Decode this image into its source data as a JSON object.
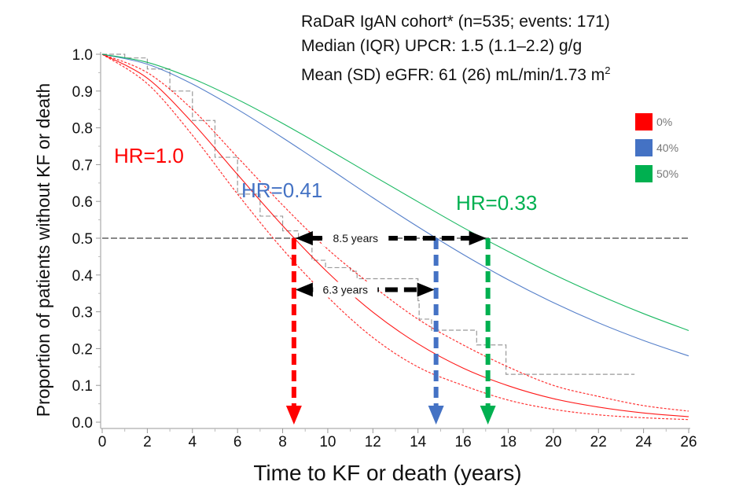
{
  "header": {
    "line1": "RaDaR IgAN cohort* (n=535; events: 171)",
    "line2": "Median (IQR) UPCR: 1.5 (1.1–2.2) g/g",
    "line3_prefix": "Mean (SD) eGFR: 61 (26) mL/min/1.73 m",
    "line3_sup": "2"
  },
  "legend": [
    {
      "label": "0%",
      "color": "#ff0000"
    },
    {
      "label": "40%",
      "color": "#4472c4"
    },
    {
      "label": "50%",
      "color": "#00b050"
    }
  ],
  "hr_labels": [
    {
      "text": "HR=1.0",
      "color": "#ff0000"
    },
    {
      "text": "HR=0.41",
      "color": "#4472c4"
    },
    {
      "text": "HR=0.33",
      "color": "#00b050"
    }
  ],
  "chart_data": {
    "type": "line",
    "xlabel": "Time to KF or death (years)",
    "ylabel": "Proportion of patients  without KF or death",
    "xlim": [
      0,
      26
    ],
    "ylim": [
      0,
      1
    ],
    "xticks": [
      "0",
      "2",
      "4",
      "6",
      "8",
      "10",
      "12",
      "14",
      "16",
      "18",
      "20",
      "22",
      "24",
      "26"
    ],
    "yticks": [
      "0.0",
      "0.1",
      "0.2",
      "0.3",
      "0.4",
      "0.5",
      "0.6",
      "0.7",
      "0.8",
      "0.9",
      "1.0"
    ],
    "x": [
      0,
      2,
      4,
      6,
      8,
      10,
      12,
      14,
      16,
      18,
      20,
      22,
      24,
      26
    ],
    "series": [
      {
        "name": "0%",
        "color": "#ff0000",
        "values": [
          1.0,
          0.935,
          0.814,
          0.673,
          0.534,
          0.407,
          0.299,
          0.213,
          0.147,
          0.099,
          0.064,
          0.041,
          0.025,
          0.015
        ]
      },
      {
        "name": "0% upper CI",
        "color": "#ff0000",
        "style": "dotted",
        "values": [
          1.0,
          0.95,
          0.85,
          0.72,
          0.59,
          0.47,
          0.37,
          0.28,
          0.21,
          0.15,
          0.1,
          0.07,
          0.045,
          0.03
        ]
      },
      {
        "name": "0% lower CI",
        "color": "#ff0000",
        "style": "dotted",
        "values": [
          1.0,
          0.92,
          0.78,
          0.62,
          0.47,
          0.34,
          0.23,
          0.15,
          0.1,
          0.06,
          0.035,
          0.02,
          0.012,
          0.007
        ]
      },
      {
        "name": "40%",
        "color": "#4472c4",
        "values": [
          1.0,
          0.973,
          0.919,
          0.85,
          0.773,
          0.692,
          0.61,
          0.531,
          0.456,
          0.387,
          0.325,
          0.27,
          0.222,
          0.18
        ]
      },
      {
        "name": "50%",
        "color": "#00b050",
        "values": [
          1.0,
          0.978,
          0.934,
          0.877,
          0.812,
          0.742,
          0.67,
          0.599,
          0.529,
          0.464,
          0.402,
          0.346,
          0.295,
          0.249
        ]
      }
    ],
    "kaplan_meier": {
      "name": "Observed (Kaplan-Meier)",
      "points": [
        [
          0,
          1
        ],
        [
          1,
          0.99
        ],
        [
          2,
          0.96
        ],
        [
          3,
          0.9
        ],
        [
          4,
          0.82
        ],
        [
          5,
          0.72
        ],
        [
          6,
          0.62
        ],
        [
          7,
          0.56
        ],
        [
          8,
          0.52
        ],
        [
          8.7,
          0.5
        ],
        [
          9.3,
          0.44
        ],
        [
          9.9,
          0.42
        ],
        [
          11.0,
          0.41
        ],
        [
          11.3,
          0.39
        ],
        [
          14.0,
          0.33
        ],
        [
          14.05,
          0.28
        ],
        [
          14.6,
          0.25
        ],
        [
          16.6,
          0.21
        ],
        [
          17.9,
          0.13
        ],
        [
          23.6,
          0.13
        ]
      ]
    },
    "reference_line_y": 0.5,
    "medians": [
      {
        "name": "0%",
        "x": 8.5,
        "color": "#ff0000"
      },
      {
        "name": "40%",
        "x": 14.8,
        "color": "#4472c4"
      },
      {
        "name": "50%",
        "x": 17.1,
        "color": "#00b050"
      }
    ],
    "annotations": [
      {
        "text": "8.5 years",
        "from": 8.5,
        "to": 17.1,
        "y": 0.5
      },
      {
        "text": "6.3 years",
        "from": 8.5,
        "to": 14.8,
        "y": 0.36
      }
    ]
  }
}
